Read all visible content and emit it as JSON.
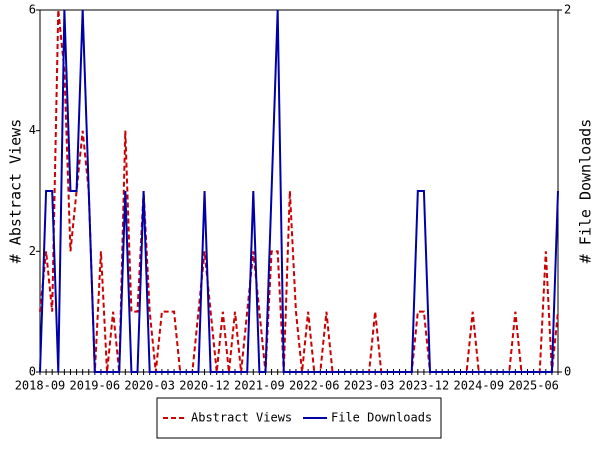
{
  "chart_data": {
    "type": "line",
    "y_label": "# Abstract Views",
    "y2_label": "# File Downloads",
    "categories": [
      "2018-09",
      null,
      null,
      null,
      null,
      null,
      null,
      null,
      null,
      "2019-06",
      null,
      null,
      null,
      null,
      null,
      null,
      null,
      null,
      "2020-03",
      null,
      null,
      null,
      null,
      null,
      null,
      null,
      null,
      "2020-12",
      null,
      null,
      null,
      null,
      null,
      null,
      null,
      null,
      "2021-09",
      null,
      null,
      null,
      null,
      null,
      null,
      null,
      null,
      "2022-06",
      null,
      null,
      null,
      null,
      null,
      null,
      null,
      null,
      "2023-03",
      null,
      null,
      null,
      null,
      null,
      null,
      null,
      null,
      "2023-12",
      null,
      null,
      null,
      null,
      null,
      null,
      null,
      null,
      "2024-09",
      null,
      null,
      null,
      null,
      null,
      null,
      null,
      null,
      "2025-06",
      null,
      null,
      null,
      null
    ],
    "series": [
      {
        "name": "Abstract Views",
        "color": "#cc0000",
        "dash": true,
        "axis": "y",
        "values": [
          1,
          2,
          1,
          6,
          5,
          2,
          3,
          4,
          3,
          0,
          2,
          0,
          1,
          0,
          4,
          1,
          1,
          3,
          1,
          0,
          1,
          1,
          1,
          0,
          0,
          0,
          1,
          2,
          1,
          0,
          1,
          0,
          1,
          0,
          1,
          2,
          1,
          0,
          2,
          2,
          0,
          3,
          1,
          0,
          1,
          0,
          0,
          1,
          0,
          0,
          0,
          0,
          0,
          0,
          0,
          1,
          0,
          0,
          0,
          0,
          0,
          0,
          1,
          1,
          0,
          0,
          0,
          0,
          0,
          0,
          0,
          1,
          0,
          0,
          0,
          0,
          0,
          0,
          1,
          0,
          0,
          0,
          0,
          2,
          0,
          1
        ]
      },
      {
        "name": "File Downloads",
        "color": "#0000aa",
        "dash": false,
        "axis": "y2",
        "values": [
          0,
          1,
          1,
          0,
          2,
          1,
          1,
          2,
          1,
          0,
          0,
          0,
          0,
          0,
          1,
          0,
          0,
          1,
          0,
          0,
          0,
          0,
          0,
          0,
          0,
          0,
          0,
          1,
          0,
          0,
          0,
          0,
          0,
          0,
          0,
          1,
          0,
          0,
          1,
          2,
          0,
          0,
          0,
          0,
          0,
          0,
          0,
          0,
          0,
          0,
          0,
          0,
          0,
          0,
          0,
          0,
          0,
          0,
          0,
          0,
          0,
          0,
          1,
          1,
          0,
          0,
          0,
          0,
          0,
          0,
          0,
          0,
          0,
          0,
          0,
          0,
          0,
          0,
          0,
          0,
          0,
          0,
          0,
          0,
          0,
          1
        ]
      }
    ],
    "ylim": [
      0,
      6
    ],
    "yticks": [
      0,
      2,
      4,
      6
    ],
    "y2lim": [
      0,
      2
    ],
    "y2ticks": [
      0,
      2
    ],
    "legend": "bottom"
  }
}
